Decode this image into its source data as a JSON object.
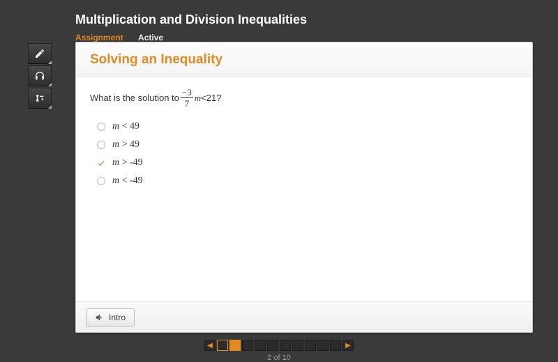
{
  "header": {
    "title": "Multiplication and Division Inequalities",
    "tabs": [
      {
        "label": "Assignment",
        "active": true
      },
      {
        "label": "Active",
        "active": false
      }
    ]
  },
  "toolbar": {
    "tools": [
      "pencil-icon",
      "headphones-icon",
      "math-editor-icon"
    ]
  },
  "card": {
    "title": "Solving an Inequality",
    "question_prefix": "What is the solution to ",
    "fraction_num": "−3",
    "fraction_den": "7",
    "question_var": "m",
    "question_op": " < ",
    "question_rhs": "21",
    "question_suffix": "?",
    "options": [
      {
        "text": "m < 49",
        "selected": false
      },
      {
        "text": "m > 49",
        "selected": false
      },
      {
        "text": "m > -49",
        "selected": true
      },
      {
        "text": "m < -49",
        "selected": false
      }
    ],
    "intro_button": "Intro"
  },
  "pager": {
    "total": 10,
    "current": 2,
    "completed": [
      1
    ],
    "label": "2 of 10"
  },
  "colors": {
    "accent": "#e58a1e",
    "correct": "#4a9b2f",
    "bg": "#3a3a3a",
    "card_bg": "#ffffff"
  }
}
